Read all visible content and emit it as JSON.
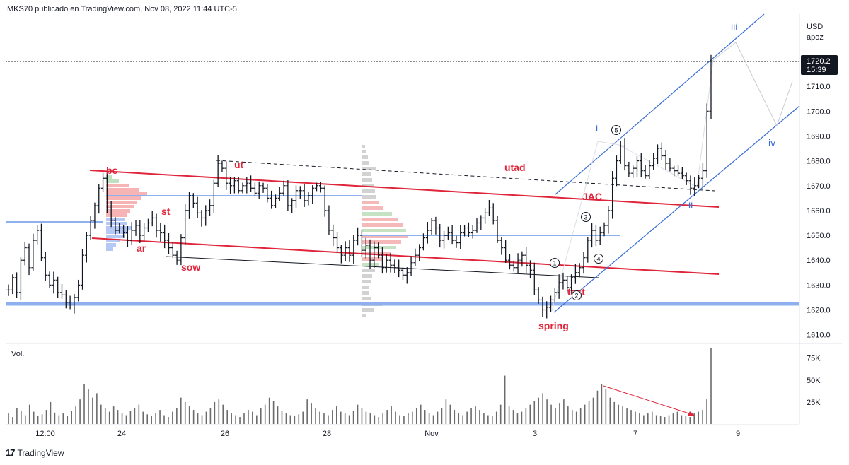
{
  "header": {
    "text": "MKS70 publicado en TradingView.com, Nov 08, 2022 11:44 UTC-5"
  },
  "footer": {
    "logo": "17",
    "brand": "TradingView"
  },
  "chart_data": {
    "type": "candlestick",
    "symbol": "apoz",
    "currency": "USD",
    "price_axis": {
      "ticks": [
        1710.0,
        1700.0,
        1690.0,
        1680.0,
        1670.0,
        1660.0,
        1650.0,
        1640.0,
        1630.0,
        1620.0,
        1610.0
      ],
      "ylim": [
        1607,
        1730
      ]
    },
    "last_price": {
      "value": 1720.2,
      "countdown": "15:39"
    },
    "time_axis": {
      "ticks": [
        "12:00",
        "24",
        "26",
        "28",
        "Nov",
        "3",
        "7",
        "9"
      ]
    },
    "volume": {
      "label": "Vol.",
      "ticks": [
        "75K",
        "50K",
        "25K"
      ],
      "ylim": [
        0,
        90000
      ]
    },
    "price_path": [
      1628,
      1633,
      1627,
      1640,
      1645,
      1637,
      1648,
      1652,
      1641,
      1634,
      1630,
      1632,
      1627,
      1626,
      1623,
      1622,
      1625,
      1630,
      1642,
      1650,
      1656,
      1662,
      1669,
      1673,
      1661,
      1656,
      1652,
      1653,
      1651,
      1648,
      1652,
      1654,
      1650,
      1653,
      1655,
      1657,
      1652,
      1651,
      1648,
      1645,
      1642,
      1640,
      1649,
      1660,
      1666,
      1663,
      1659,
      1657,
      1660,
      1662,
      1671,
      1679,
      1677,
      1671,
      1670,
      1672,
      1668,
      1670,
      1671,
      1669,
      1667,
      1670,
      1669,
      1665,
      1662,
      1665,
      1667,
      1670,
      1662,
      1664,
      1668,
      1668,
      1664,
      1666,
      1669,
      1670,
      1669,
      1660,
      1652,
      1649,
      1645,
      1642,
      1645,
      1642,
      1648,
      1650,
      1644,
      1646,
      1640,
      1645,
      1642,
      1637,
      1640,
      1638,
      1637,
      1636,
      1634,
      1635,
      1639,
      1642,
      1645,
      1649,
      1652,
      1656,
      1653,
      1648,
      1650,
      1651,
      1648,
      1647,
      1651,
      1653,
      1651,
      1652,
      1655,
      1657,
      1659,
      1661,
      1656,
      1648,
      1645,
      1640,
      1638,
      1637,
      1640,
      1642,
      1638,
      1636,
      1628,
      1624,
      1620,
      1621,
      1624,
      1627,
      1631,
      1632,
      1629,
      1633,
      1635,
      1637,
      1641,
      1648,
      1652,
      1648,
      1651,
      1654,
      1660,
      1673,
      1680,
      1686,
      1678,
      1675,
      1677,
      1680,
      1676,
      1674,
      1678,
      1681,
      1685,
      1682,
      1679,
      1677,
      1676,
      1675,
      1674,
      1672,
      1669,
      1670,
      1673,
      1676,
      1700,
      1720.2
    ],
    "volume_values": [
      12,
      8,
      18,
      15,
      10,
      22,
      14,
      9,
      11,
      16,
      25,
      13,
      10,
      12,
      9,
      15,
      20,
      28,
      45,
      40,
      30,
      35,
      22,
      18,
      14,
      20,
      16,
      12,
      10,
      15,
      18,
      22,
      14,
      11,
      9,
      12,
      16,
      10,
      8,
      14,
      18,
      30,
      25,
      20,
      16,
      12,
      10,
      14,
      18,
      25,
      28,
      22,
      16,
      12,
      10,
      8,
      12,
      16,
      14,
      10,
      18,
      22,
      30,
      26,
      20,
      15,
      12,
      10,
      9,
      11,
      14,
      28,
      24,
      18,
      14,
      12,
      10,
      16,
      20,
      14,
      12,
      10,
      15,
      22,
      18,
      14,
      12,
      10,
      8,
      12,
      16,
      20,
      14,
      10,
      9,
      12,
      14,
      18,
      22,
      16,
      12,
      10,
      14,
      18,
      28,
      22,
      16,
      12,
      10,
      14,
      18,
      20,
      16,
      12,
      10,
      9,
      14,
      22,
      55,
      20,
      16,
      12,
      14,
      18,
      22,
      26,
      30,
      35,
      28,
      22,
      18,
      24,
      28,
      20,
      16,
      14,
      18,
      22,
      26,
      30,
      38,
      45,
      40,
      30,
      25,
      22,
      20,
      18,
      16,
      14,
      12,
      10,
      12,
      14,
      10,
      9,
      8,
      10,
      12,
      14,
      10,
      9,
      8,
      12,
      14,
      16,
      28,
      86
    ],
    "annotations": [
      {
        "text": "bc",
        "color": "#e0253b"
      },
      {
        "text": "ut",
        "color": "#e0253b"
      },
      {
        "text": "st",
        "color": "#e0253b"
      },
      {
        "text": "ar",
        "color": "#e0253b"
      },
      {
        "text": "sow",
        "color": "#e0253b"
      },
      {
        "text": "utad",
        "color": "#e0253b"
      },
      {
        "text": "spring",
        "color": "#e0253b"
      },
      {
        "text": "JAC",
        "color": "#e0253b"
      },
      {
        "text": "test",
        "color": "#e0253b"
      },
      {
        "text": "i",
        "color": "#3b6fd6"
      },
      {
        "text": "ii",
        "color": "#3b6fd6"
      },
      {
        "text": "iii",
        "color": "#3b6fd6"
      },
      {
        "text": "iv",
        "color": "#3b6fd6"
      }
    ],
    "circled_counts": [
      "1",
      "2",
      "3",
      "4",
      "5"
    ],
    "colors": {
      "bar": "#131722",
      "red_line": "#e0253b",
      "blue_line": "#3b6fd6",
      "support": "#8fb0ee",
      "volume": "#6b6b6b",
      "vp_red": "#f4a7a7",
      "vp_green": "#b6dbb4",
      "vp_blue": "#a9bff3"
    }
  }
}
